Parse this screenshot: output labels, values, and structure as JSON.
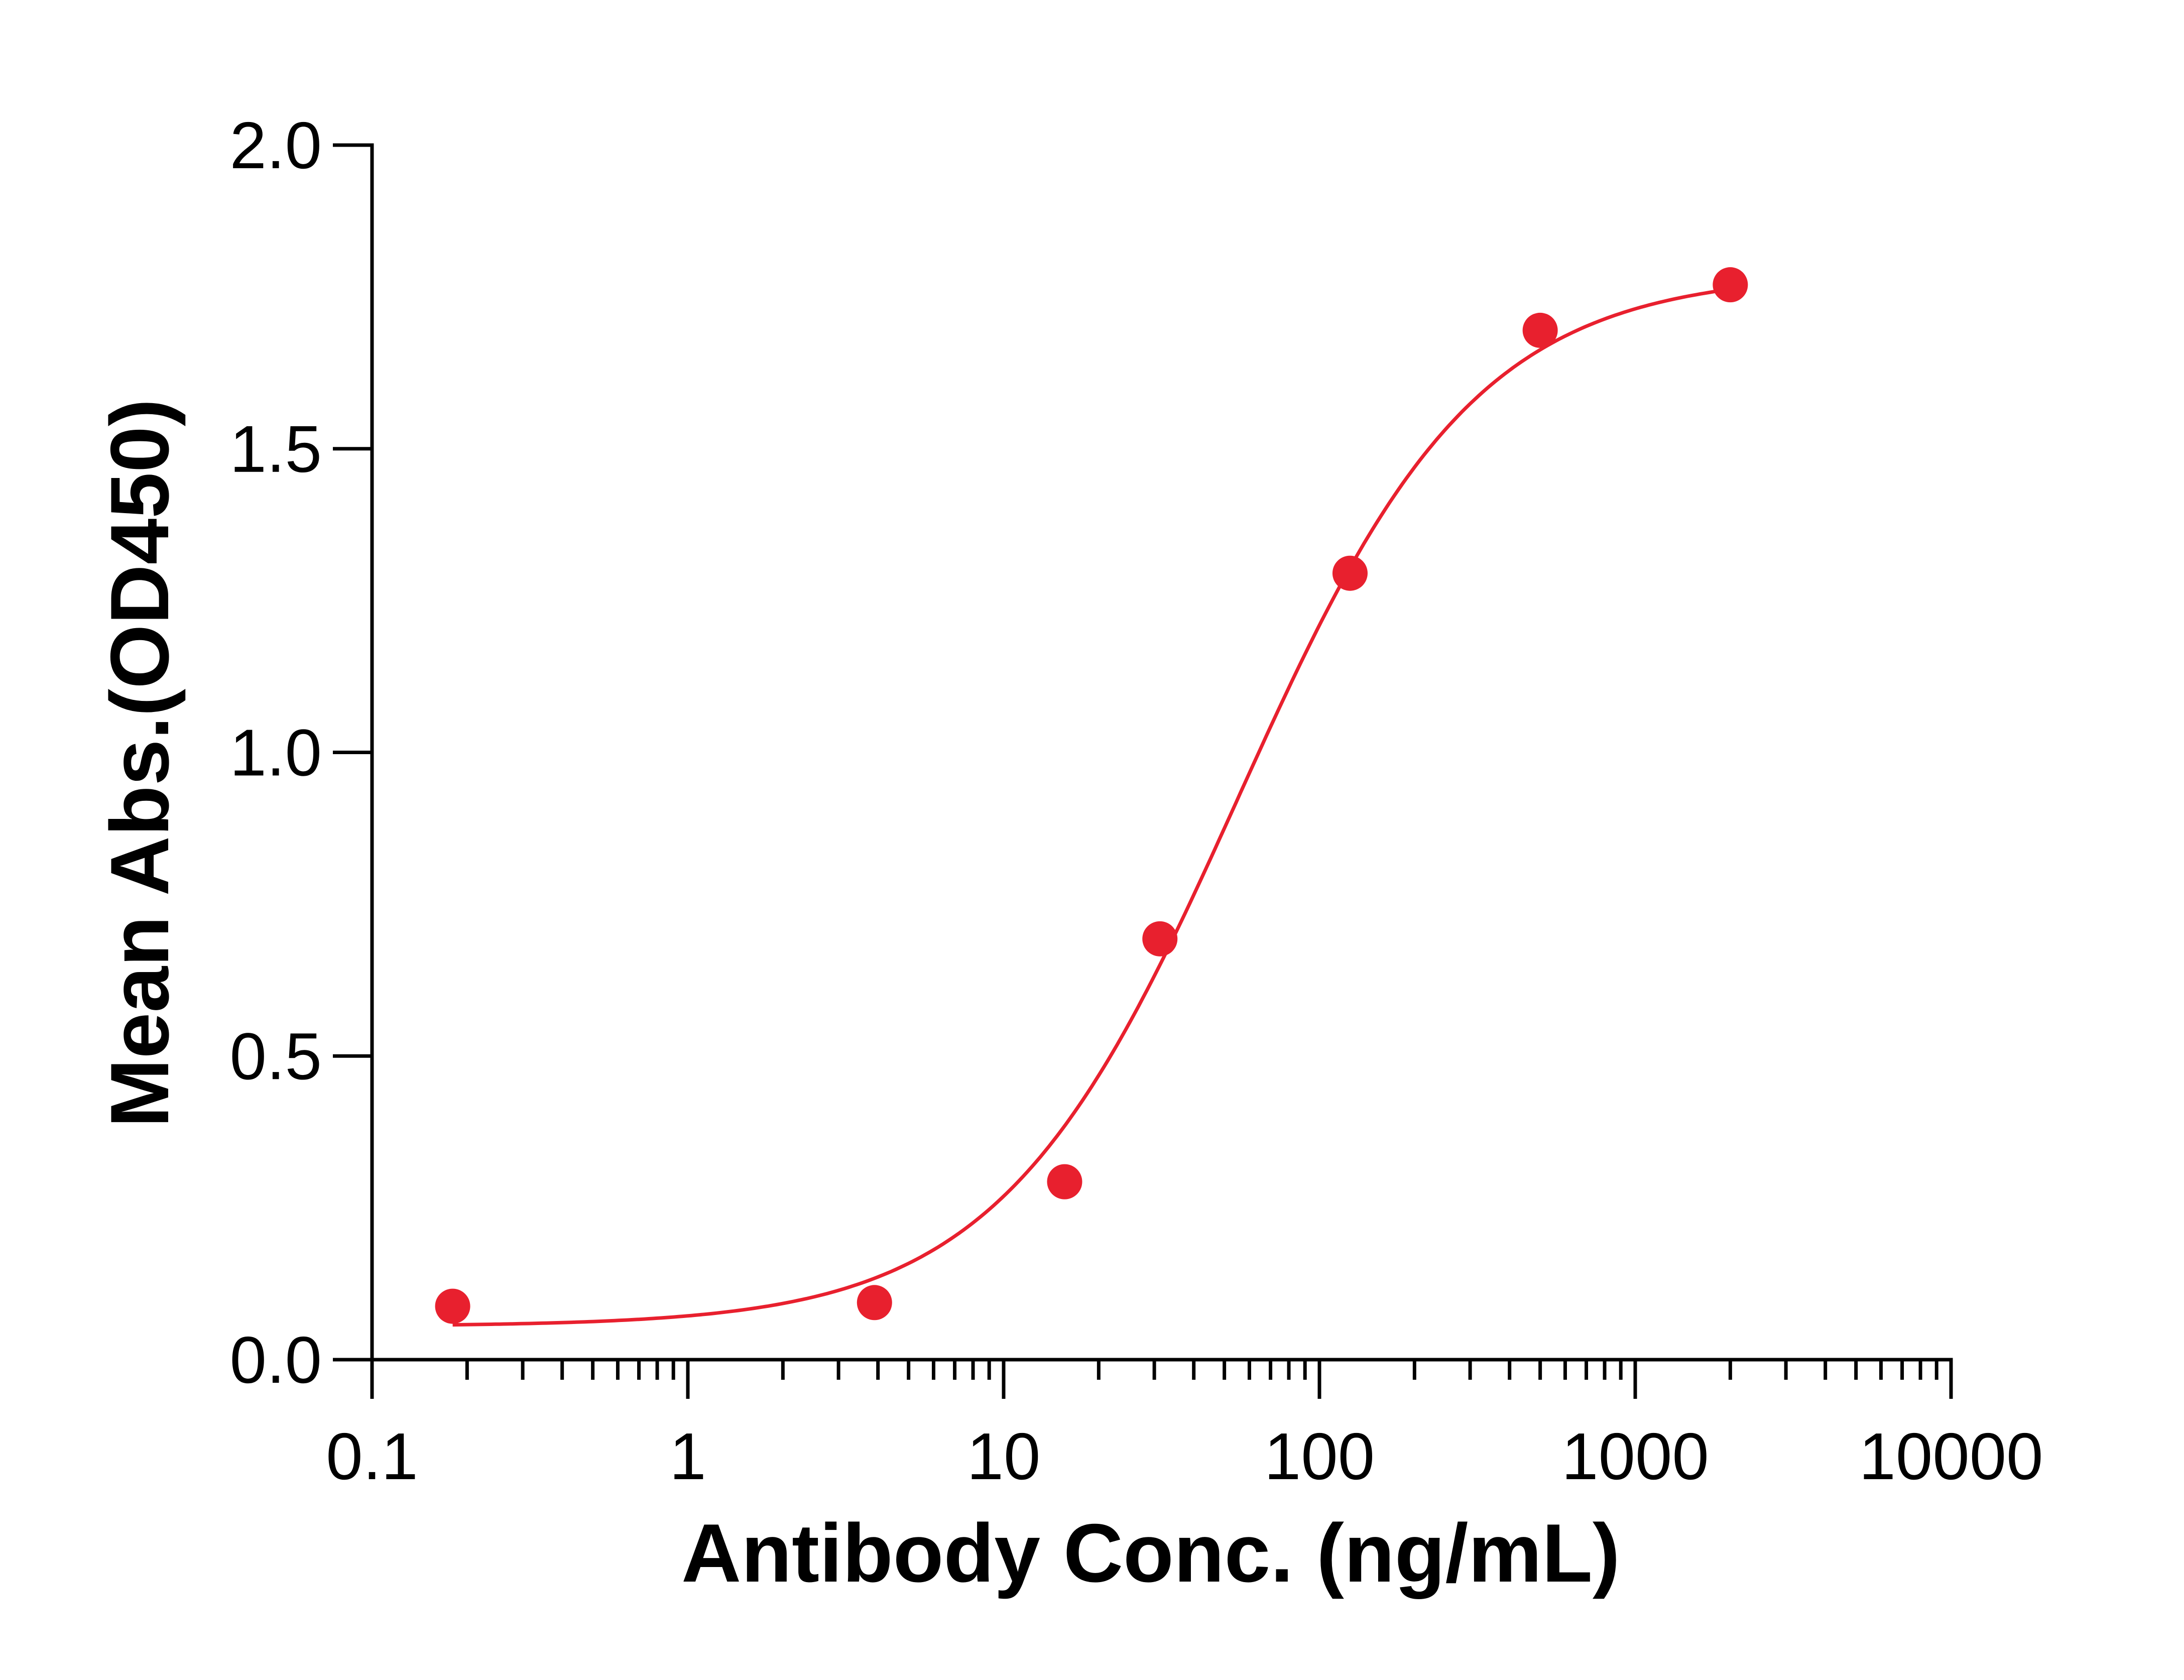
{
  "chart_data": {
    "type": "scatter",
    "title": "",
    "xlabel": "Antibody Conc. (ng/mL)",
    "ylabel": "Mean Abs.(OD450)",
    "x_scale": "log",
    "xlim": [
      0.1,
      10000
    ],
    "ylim": [
      0.0,
      2.0
    ],
    "x_ticks": [
      0.1,
      1,
      10,
      100,
      1000,
      10000
    ],
    "x_tick_labels": [
      "0.1",
      "1",
      "10",
      "100",
      "1000",
      "10000"
    ],
    "y_ticks": [
      0.0,
      0.5,
      1.0,
      1.5,
      2.0
    ],
    "y_tick_labels": [
      "0.0",
      "0.5",
      "1.0",
      "1.5",
      "2.0"
    ],
    "grid": false,
    "color": "#e8202e",
    "series": [
      {
        "points": [
          {
            "x": 0.18,
            "y": 0.088
          },
          {
            "x": 3.9,
            "y": 0.094
          },
          {
            "x": 15.6,
            "y": 0.293
          },
          {
            "x": 31.25,
            "y": 0.693
          },
          {
            "x": 125,
            "y": 1.295
          },
          {
            "x": 500,
            "y": 1.695
          },
          {
            "x": 2000,
            "y": 1.77
          }
        ],
        "fit": {
          "model": "4PL",
          "bottom": 0.055,
          "top": 1.79,
          "ec50": 55,
          "hill": 1.15,
          "x_range": [
            0.18,
            2000
          ]
        }
      }
    ]
  }
}
